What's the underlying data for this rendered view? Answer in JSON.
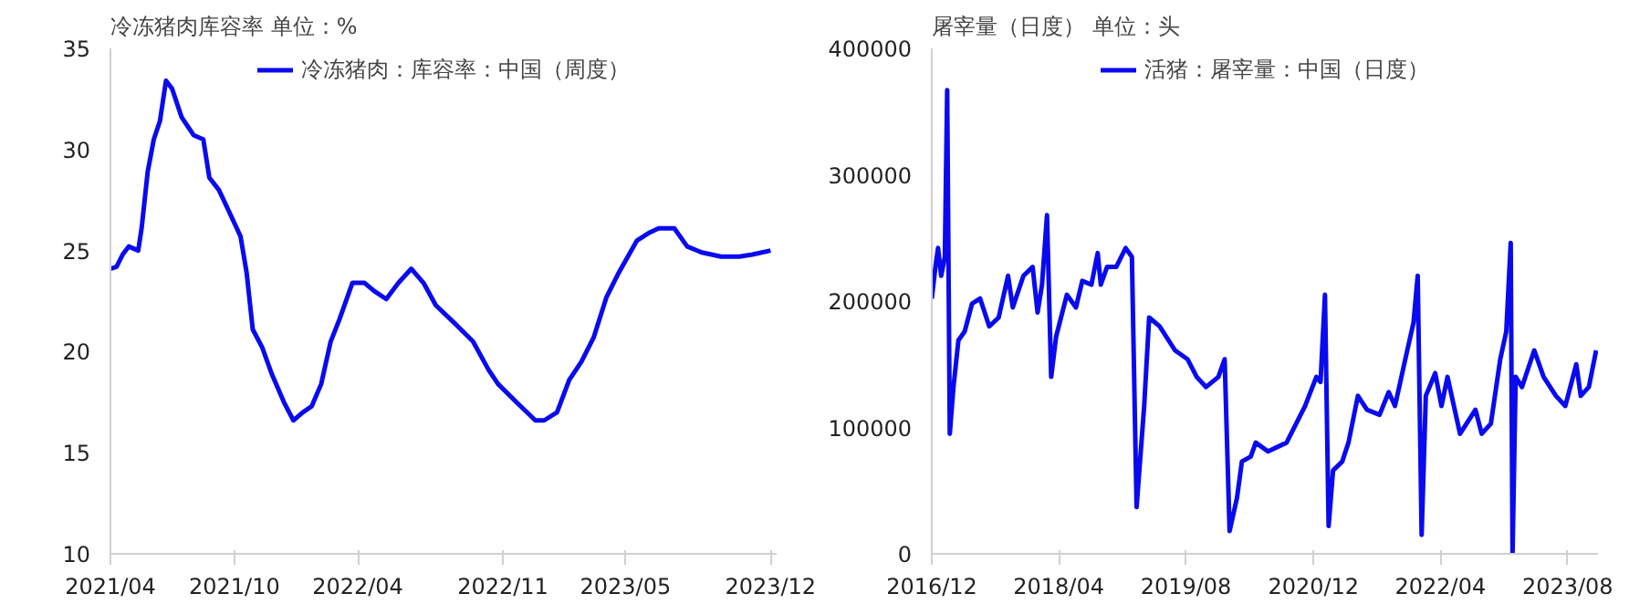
{
  "chart_data": [
    {
      "type": "line",
      "title": "冷冻猪肉库容率 单位：%",
      "legend": "top",
      "grid": false,
      "x": [
        "2021-04-01",
        "2021-04-10",
        "2021-04-19",
        "2021-04-28",
        "2021-05-12",
        "2021-05-17",
        "2021-05-26",
        "2021-06-04",
        "2021-06-13",
        "2021-06-22",
        "2021-07-01",
        "2021-07-15",
        "2021-08-02",
        "2021-08-16",
        "2021-08-25",
        "2021-09-08",
        "2021-09-22",
        "2021-10-10",
        "2021-10-19",
        "2021-10-28",
        "2021-11-11",
        "2021-11-25",
        "2021-12-13",
        "2021-12-27",
        "2022-01-10",
        "2022-01-23",
        "2022-02-06",
        "2022-02-20",
        "2022-03-05",
        "2022-03-24",
        "2022-04-11",
        "2022-04-25",
        "2022-05-13",
        "2022-05-31",
        "2022-06-19",
        "2022-07-07",
        "2022-07-25",
        "2022-08-22",
        "2022-09-18",
        "2022-10-11",
        "2022-10-25",
        "2022-11-21",
        "2022-12-19",
        "2023-01-01",
        "2023-01-20",
        "2023-02-07",
        "2023-02-25",
        "2023-03-15",
        "2023-04-03",
        "2023-04-21",
        "2023-05-18",
        "2023-06-06",
        "2023-06-19",
        "2023-07-12",
        "2023-07-31",
        "2023-08-22",
        "2023-09-19",
        "2023-10-16",
        "2023-11-04",
        "2023-12-01"
      ],
      "series": [
        {
          "name": "冷冻猪肉：库容率：中国（周度）",
          "color": "#0a0aef",
          "values": [
            24.1,
            24.2,
            24.8,
            25.2,
            25.0,
            26.1,
            28.9,
            30.5,
            31.4,
            33.4,
            33.0,
            31.6,
            30.7,
            30.5,
            28.6,
            28.0,
            27.0,
            25.7,
            23.9,
            21.1,
            20.2,
            18.9,
            17.5,
            16.6,
            17.0,
            17.3,
            18.4,
            20.5,
            21.6,
            23.4,
            23.4,
            23.0,
            22.6,
            23.4,
            24.1,
            23.4,
            22.3,
            21.4,
            20.5,
            19.1,
            18.4,
            17.5,
            16.6,
            16.6,
            17.0,
            18.6,
            19.5,
            20.7,
            22.7,
            23.9,
            25.5,
            25.9,
            26.1,
            26.1,
            25.2,
            24.9,
            24.7,
            24.7,
            24.8,
            25.0
          ]
        }
      ],
      "xlim": [
        "2021-04-01",
        "2023-12-10"
      ],
      "xticks": [
        {
          "value": "2021-04-01",
          "label": "2021/04"
        },
        {
          "value": "2021-10-01",
          "label": "2021/10"
        },
        {
          "value": "2022-04-01",
          "label": "2022/04"
        },
        {
          "value": "2022-11-01",
          "label": "2022/11"
        },
        {
          "value": "2023-05-01",
          "label": "2023/05"
        },
        {
          "value": "2023-12-01",
          "label": "2023/12"
        }
      ],
      "ylim": [
        10,
        35
      ],
      "yticks": [
        10,
        15,
        20,
        25,
        30,
        35
      ]
    },
    {
      "type": "line",
      "title": "屠宰量（日度） 单位：头",
      "legend": "top",
      "grid": false,
      "x": [
        "2016-12-01",
        "2016-12-15",
        "2016-12-25",
        "2017-01-06",
        "2017-01-20",
        "2017-01-29",
        "2017-02-08",
        "2017-02-22",
        "2017-03-13",
        "2017-04-06",
        "2017-05-04",
        "2017-06-04",
        "2017-07-09",
        "2017-08-14",
        "2017-09-19",
        "2017-10-07",
        "2017-11-17",
        "2017-12-22",
        "2018-01-10",
        "2018-01-27",
        "2018-02-15",
        "2018-03-03",
        "2018-03-22",
        "2018-05-02",
        "2018-06-06",
        "2018-06-30",
        "2018-08-04",
        "2018-08-28",
        "2018-09-09",
        "2018-10-03",
        "2018-11-07",
        "2018-12-13",
        "2019-01-06",
        "2019-01-24",
        "2019-02-22",
        "2019-03-13",
        "2019-04-22",
        "2019-06-20",
        "2019-08-07",
        "2019-09-11",
        "2019-10-17",
        "2019-12-03",
        "2019-12-27",
        "2020-01-15",
        "2020-02-12",
        "2020-03-02",
        "2020-04-05",
        "2020-04-24",
        "2020-06-10",
        "2020-08-20",
        "2020-10-30",
        "2020-12-12",
        "2020-12-28",
        "2021-01-14",
        "2021-01-28",
        "2021-02-14",
        "2021-03-21",
        "2021-04-14",
        "2021-05-20",
        "2021-06-24",
        "2021-08-11",
        "2021-09-15",
        "2021-10-09",
        "2021-11-25",
        "2021-12-19",
        "2022-01-04",
        "2022-01-19",
        "2022-02-04",
        "2022-03-12",
        "2022-04-05",
        "2022-04-28",
        "2022-06-15",
        "2022-08-13",
        "2022-09-06",
        "2022-10-11",
        "2022-11-16",
        "2022-12-09",
        "2022-12-26",
        "2023-01-02",
        "2023-01-14",
        "2023-02-07",
        "2023-03-26",
        "2023-05-01",
        "2023-06-17",
        "2023-07-23",
        "2023-09-03",
        "2023-09-20",
        "2023-10-21",
        "2023-11-18"
      ],
      "series": [
        {
          "name": "活猪：屠宰量：中国（日度）",
          "color": "#0a0aef",
          "values": [
            202000,
            227000,
            242000,
            220000,
            235000,
            367000,
            95000,
            132000,
            169000,
            176000,
            198000,
            202000,
            180000,
            187000,
            220000,
            195000,
            220000,
            227000,
            191000,
            213000,
            268000,
            140000,
            172000,
            205000,
            195000,
            216000,
            213000,
            238000,
            213000,
            227000,
            227000,
            242000,
            235000,
            37000,
            117000,
            187000,
            180000,
            161000,
            154000,
            140000,
            132000,
            140000,
            154000,
            18000,
            44000,
            73000,
            77000,
            88000,
            81000,
            88000,
            117000,
            140000,
            136000,
            205000,
            22000,
            66000,
            73000,
            88000,
            125000,
            114000,
            110000,
            128000,
            117000,
            161000,
            183000,
            220000,
            15000,
            125000,
            143000,
            117000,
            140000,
            95000,
            114000,
            95000,
            103000,
            154000,
            176000,
            246000,
            0,
            140000,
            132000,
            161000,
            140000,
            125000,
            117000,
            150000,
            125000,
            132000,
            161000
          ]
        }
      ],
      "xlim": [
        "2016-12-01",
        "2023-11-25"
      ],
      "xticks": [
        {
          "value": "2016-12-01",
          "label": "2016/12"
        },
        {
          "value": "2018-04-01",
          "label": "2018/04"
        },
        {
          "value": "2019-08-01",
          "label": "2019/08"
        },
        {
          "value": "2020-12-01",
          "label": "2020/12"
        },
        {
          "value": "2022-04-01",
          "label": "2022/04"
        },
        {
          "value": "2023-08-01",
          "label": "2023/08"
        }
      ],
      "ylim": [
        0,
        400000
      ],
      "yticks": [
        0,
        100000,
        200000,
        300000,
        400000
      ]
    }
  ]
}
